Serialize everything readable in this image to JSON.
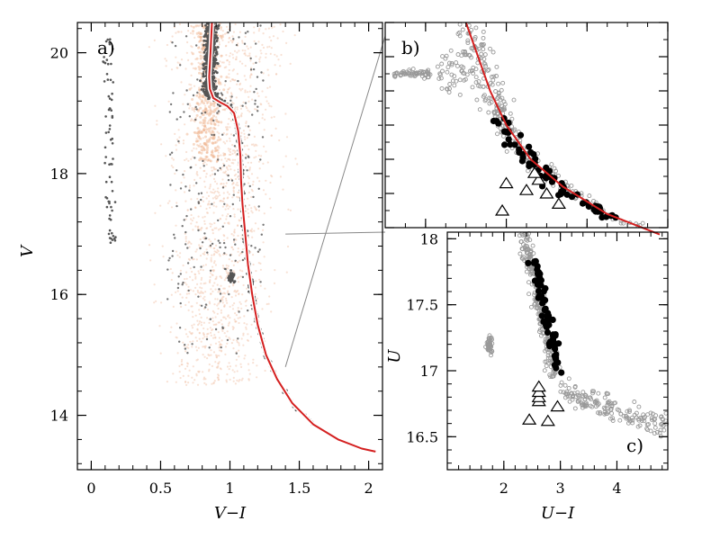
{
  "chart_data": [
    {
      "id": "a",
      "type": "scatter",
      "panel_label": "a)",
      "xlabel": "V−I",
      "ylabel": "V",
      "xlim": [
        -0.1,
        2.1
      ],
      "ylim": [
        20.5,
        13.1
      ],
      "y_inverted": true,
      "x_ticks": [
        0,
        0.5,
        1,
        1.5,
        2
      ],
      "x_tick_labels": [
        "0",
        "0.5",
        "1",
        "1.5",
        "2"
      ],
      "y_ticks": [
        14,
        16,
        18,
        20
      ],
      "y_tick_labels": [
        "14",
        "16",
        "18",
        "20"
      ],
      "series": [
        {
          "name": "field stars",
          "color": "#f2c9b0",
          "style": "faint dots"
        },
        {
          "name": "cluster members",
          "color": "#555555",
          "style": "dots"
        },
        {
          "name": "isochrone",
          "color": "#d42020",
          "style": "line",
          "x": [
            0.87,
            0.86,
            0.85,
            0.855,
            0.88,
            0.93,
            0.98,
            1.03,
            1.06,
            1.075,
            1.08,
            1.09,
            1.11,
            1.13,
            1.16,
            1.2,
            1.26,
            1.34,
            1.45,
            1.6,
            1.78,
            1.95,
            2.05
          ],
          "y": [
            20.5,
            20.0,
            19.6,
            19.4,
            19.25,
            19.18,
            19.12,
            19.0,
            18.7,
            18.3,
            17.9,
            17.5,
            17.0,
            16.5,
            16.0,
            15.5,
            15.0,
            14.6,
            14.2,
            13.85,
            13.6,
            13.45,
            13.4
          ]
        }
      ],
      "zoom_box": {
        "x": [
          1.0,
          1.4
        ],
        "y": [
          14.8,
          17.0
        ]
      }
    },
    {
      "id": "b",
      "type": "scatter",
      "panel_label": "b)",
      "xlim": [
        0.9,
        1.6
      ],
      "ylim": [
        17.0,
        14.0
      ],
      "y_inverted": true,
      "series": [
        {
          "name": "stars",
          "color": "#999999",
          "style": "open circles"
        },
        {
          "name": "RGB members",
          "color": "#000000",
          "style": "filled circles"
        },
        {
          "name": "AGB candidates",
          "color": "#000000",
          "style": "open triangles"
        },
        {
          "name": "isochrone",
          "color": "#d42020",
          "style": "line",
          "x": [
            1.1,
            1.13,
            1.16,
            1.2,
            1.26,
            1.34,
            1.45,
            1.58
          ],
          "y": [
            17.0,
            16.5,
            16.0,
            15.5,
            15.0,
            14.6,
            14.2,
            13.9
          ]
        }
      ]
    },
    {
      "id": "c",
      "type": "scatter",
      "panel_label": "c)",
      "xlabel": "U−I",
      "ylabel": "U",
      "xlim": [
        1.0,
        4.9
      ],
      "ylim": [
        18.05,
        16.25
      ],
      "y_inverted": true,
      "x_ticks": [
        2,
        3,
        4
      ],
      "x_tick_labels": [
        "2",
        "3",
        "4"
      ],
      "y_ticks": [
        16.5,
        17,
        17.5,
        18
      ],
      "y_tick_labels": [
        "16.5",
        "17",
        "17.5",
        "18"
      ],
      "series": [
        {
          "name": "stars",
          "color": "#999999",
          "style": "open circles"
        },
        {
          "name": "RGB members",
          "color": "#000000",
          "style": "filled circles"
        },
        {
          "name": "AGB candidates",
          "color": "#000000",
          "style": "open triangles",
          "x": [
            2.45,
            2.78,
            2.95,
            2.62,
            2.62,
            2.62,
            2.62
          ],
          "y": [
            16.63,
            16.62,
            16.73,
            16.77,
            16.8,
            16.84,
            16.88
          ]
        }
      ]
    }
  ]
}
